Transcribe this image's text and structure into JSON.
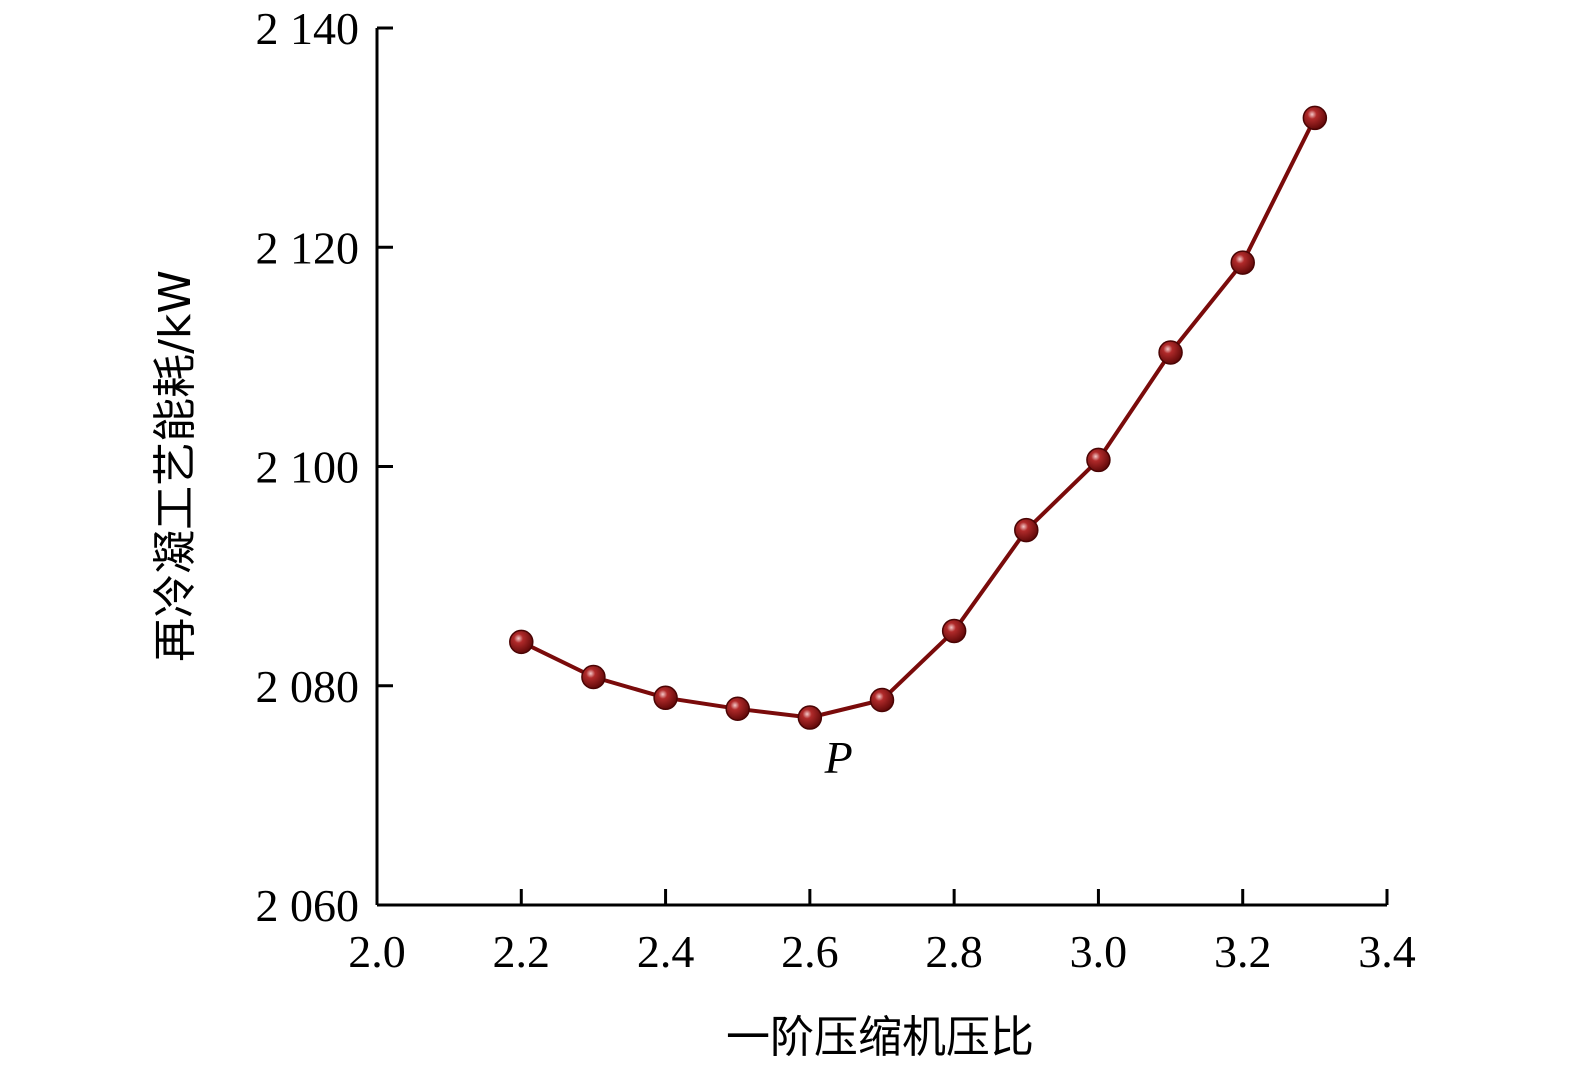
{
  "chart_data": {
    "type": "line",
    "title": "",
    "xlabel": "一阶压缩机压比",
    "ylabel": "再冷凝工艺能耗/kW",
    "xlim": [
      2.0,
      3.4
    ],
    "ylim": [
      2060,
      2140
    ],
    "xticks": [
      2.0,
      2.2,
      2.4,
      2.6,
      2.8,
      3.0,
      3.2,
      3.4
    ],
    "xtick_labels": [
      "2.0",
      "2.2",
      "2.4",
      "2.6",
      "2.8",
      "3.0",
      "3.2",
      "3.4"
    ],
    "yticks": [
      2060,
      2080,
      2100,
      2120,
      2140
    ],
    "ytick_labels": [
      "2 060",
      "2 080",
      "2 100",
      "2 120",
      "2 140"
    ],
    "grid": false,
    "series": [
      {
        "color": "#7a0b0b",
        "x": [
          2.2,
          2.3,
          2.4,
          2.5,
          2.6,
          2.7,
          2.8,
          2.9,
          3.0,
          3.1,
          3.2,
          3.3
        ],
        "y": [
          2084.0,
          2080.8,
          2078.9,
          2077.9,
          2077.1,
          2078.7,
          2085.0,
          2094.2,
          2100.6,
          2110.4,
          2118.6,
          2131.8
        ]
      }
    ],
    "annotations": [
      {
        "text": "P",
        "x": 2.64,
        "y": 2073.5
      }
    ]
  }
}
